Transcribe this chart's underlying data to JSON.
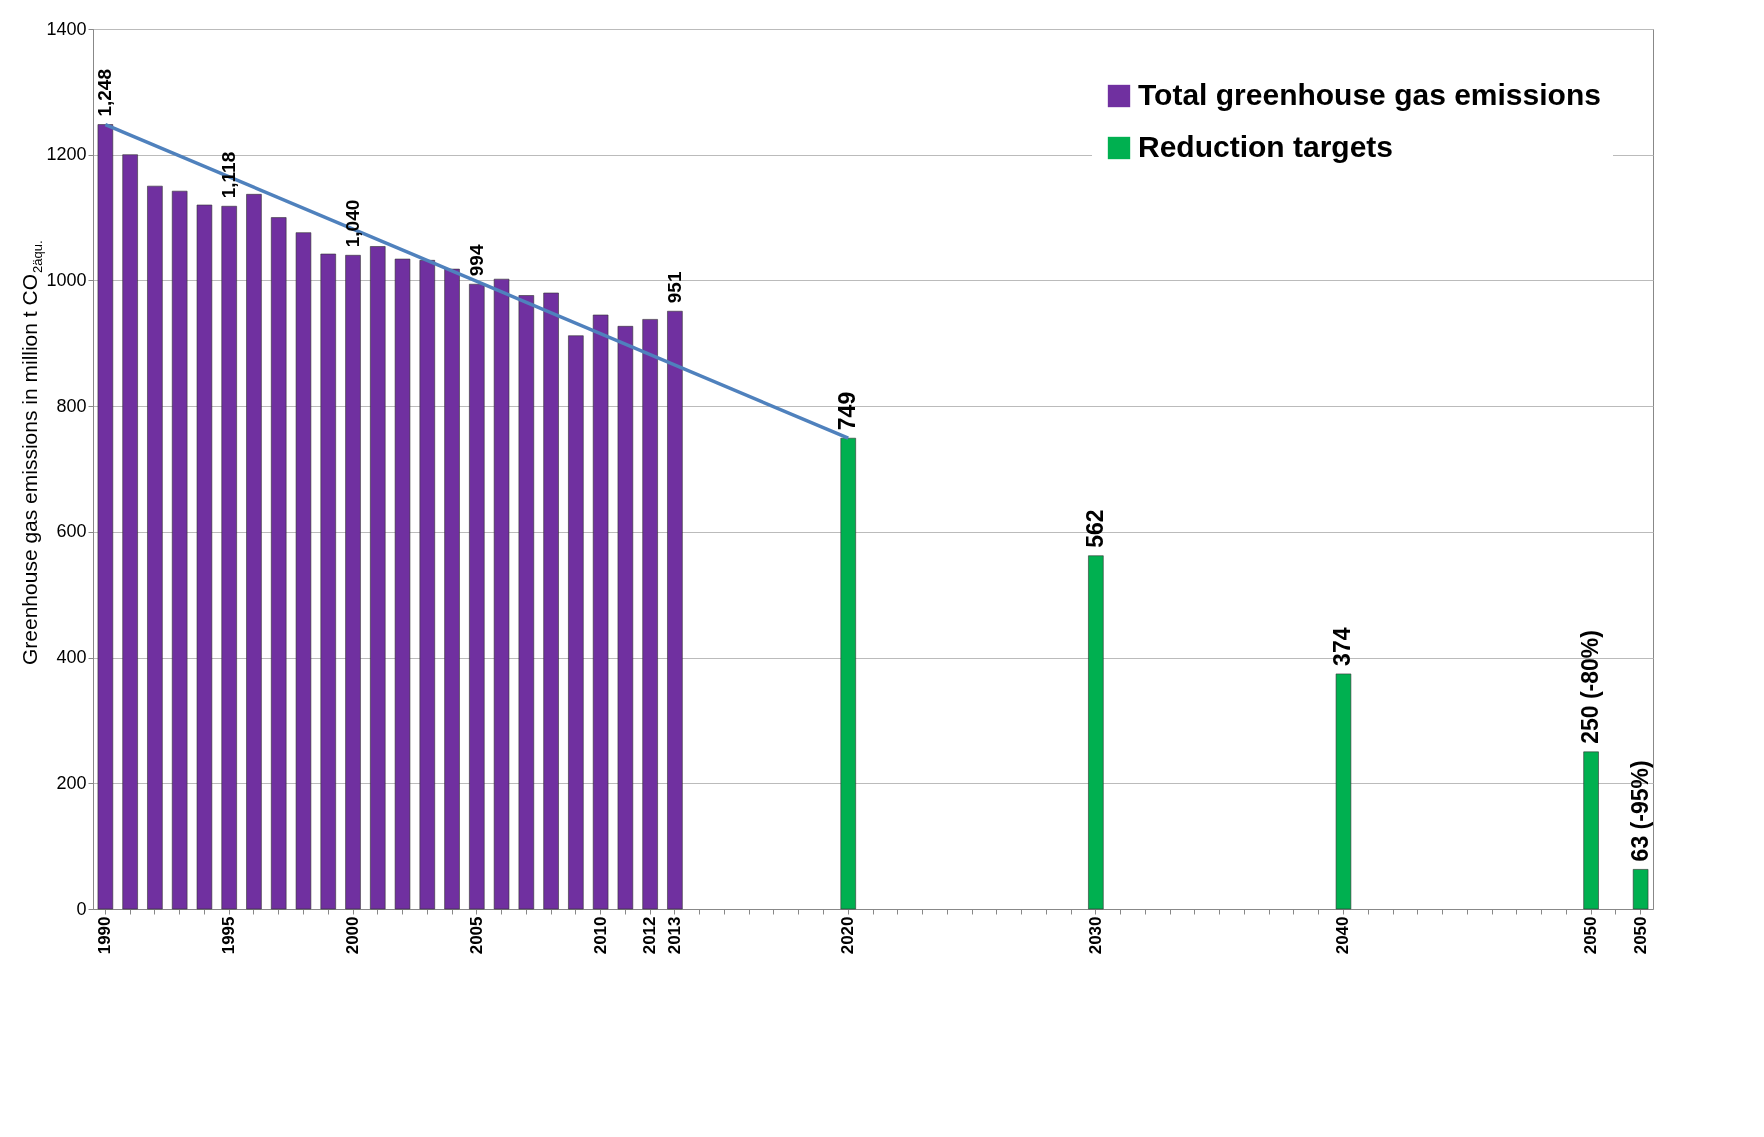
{
  "chart_data": {
    "type": "bar",
    "ylabel": "Greenhouse  gas emissions in million  t CO$_{2äqu.}$",
    "categories": [
      "1990",
      null,
      null,
      null,
      null,
      "1995",
      null,
      null,
      null,
      null,
      "2000",
      null,
      null,
      null,
      null,
      "2005",
      null,
      null,
      null,
      null,
      "2010",
      null,
      "2012",
      "2013",
      null,
      null,
      null,
      null,
      null,
      null,
      "2020",
      null,
      null,
      null,
      null,
      null,
      null,
      null,
      null,
      null,
      "2030",
      null,
      null,
      null,
      null,
      null,
      null,
      null,
      null,
      null,
      "2040",
      null,
      null,
      null,
      null,
      null,
      null,
      null,
      null,
      null,
      "2050",
      null,
      "2050"
    ],
    "series": [
      {
        "name": "Total greenhouse gas emissions",
        "color": "#7030a0",
        "values": [
          1248,
          1200,
          1150,
          1142,
          1120,
          1118,
          1137,
          1100,
          1076,
          1042,
          1040,
          1054,
          1034,
          1032,
          1018,
          994,
          1002,
          976,
          980,
          912,
          945,
          927,
          938,
          951,
          null,
          null,
          null,
          null,
          null,
          null,
          null,
          null,
          null,
          null,
          null,
          null,
          null,
          null,
          null,
          null,
          null,
          null,
          null,
          null,
          null,
          null,
          null,
          null,
          null,
          null,
          null,
          null,
          null,
          null,
          null,
          null,
          null,
          null,
          null,
          null,
          null,
          null,
          null
        ],
        "value_labels": [
          "1,248",
          null,
          null,
          null,
          null,
          "1,118",
          null,
          null,
          null,
          null,
          "1,040",
          null,
          null,
          null,
          null,
          "994",
          null,
          null,
          null,
          null,
          null,
          null,
          null,
          "951",
          null,
          null,
          null,
          null,
          null,
          null,
          null,
          null,
          null,
          null,
          null,
          null,
          null,
          null,
          null,
          null,
          null,
          null,
          null,
          null,
          null,
          null,
          null,
          null,
          null,
          null,
          null,
          null,
          null,
          null,
          null,
          null,
          null,
          null,
          null,
          null,
          null,
          null,
          null
        ]
      },
      {
        "name": "Reduction targets",
        "color": "#00b050",
        "values": [
          null,
          null,
          null,
          null,
          null,
          null,
          null,
          null,
          null,
          null,
          null,
          null,
          null,
          null,
          null,
          null,
          null,
          null,
          null,
          null,
          null,
          null,
          null,
          null,
          null,
          null,
          null,
          null,
          null,
          null,
          749,
          null,
          null,
          null,
          null,
          null,
          null,
          null,
          null,
          null,
          562,
          null,
          null,
          null,
          null,
          null,
          null,
          null,
          null,
          null,
          374,
          null,
          null,
          null,
          null,
          null,
          null,
          null,
          null,
          null,
          250,
          null,
          63
        ],
        "value_labels": [
          null,
          null,
          null,
          null,
          null,
          null,
          null,
          null,
          null,
          null,
          null,
          null,
          null,
          null,
          null,
          null,
          null,
          null,
          null,
          null,
          null,
          null,
          null,
          null,
          null,
          null,
          null,
          null,
          null,
          null,
          "749",
          null,
          null,
          null,
          null,
          null,
          null,
          null,
          null,
          null,
          "562",
          null,
          null,
          null,
          null,
          null,
          null,
          null,
          null,
          null,
          "374",
          null,
          null,
          null,
          null,
          null,
          null,
          null,
          null,
          null,
          "250 (-80%)",
          null,
          "63 (-95%)"
        ]
      },
      {
        "type": "line",
        "color": "#4f81bd",
        "values": [
          1248,
          null,
          null,
          null,
          null,
          null,
          null,
          null,
          null,
          null,
          null,
          null,
          null,
          null,
          null,
          null,
          null,
          null,
          null,
          null,
          null,
          null,
          null,
          null,
          null,
          null,
          null,
          null,
          null,
          null,
          749,
          null,
          null,
          null,
          null,
          null,
          null,
          null,
          null,
          null,
          null,
          null,
          null,
          null,
          null,
          null,
          null,
          null,
          null,
          null,
          null,
          null,
          null,
          null,
          null,
          null,
          null,
          null,
          null,
          null,
          null,
          null,
          null
        ]
      }
    ],
    "ylim": [
      0,
      1400
    ],
    "yticks": [
      0,
      200,
      400,
      600,
      800,
      1000,
      1200,
      1400
    ],
    "grid": "y",
    "legend": "top right"
  }
}
